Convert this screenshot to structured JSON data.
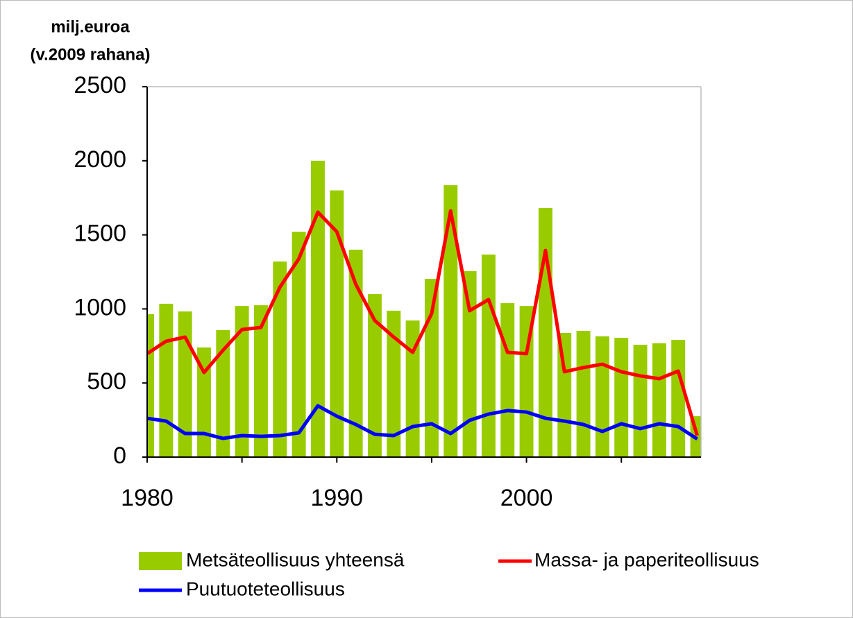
{
  "chart_data": {
    "type": "bar-line",
    "y_label": [
      "milj.euroa",
      "(v.2009 rahana)"
    ],
    "x": [
      1980,
      1981,
      1982,
      1983,
      1984,
      1985,
      1986,
      1987,
      1988,
      1989,
      1990,
      1991,
      1992,
      1993,
      1994,
      1995,
      1996,
      1997,
      1998,
      1999,
      2000,
      2001,
      2002,
      2003,
      2004,
      2005,
      2006,
      2007,
      2008,
      2009
    ],
    "series": [
      {
        "name": "Metsäteollisuus yhteensä",
        "type": "bar",
        "color": "#99cc00",
        "values": [
          965,
          1035,
          983,
          740,
          857,
          1020,
          1025,
          1320,
          1521,
          2000,
          1800,
          1400,
          1100,
          988,
          922,
          1203,
          1835,
          1255,
          1367,
          1039,
          1020,
          1681,
          838,
          852,
          815,
          805,
          758,
          768,
          791,
          276
        ]
      },
      {
        "name": "Massa- ja paperiteollisuus",
        "type": "line",
        "color": "#ff0000",
        "values": [
          698,
          782,
          810,
          571,
          721,
          861,
          875,
          1147,
          1339,
          1653,
          1521,
          1166,
          922,
          810,
          707,
          969,
          1662,
          988,
          1063,
          707,
          698,
          1395,
          576,
          604,
          627,
          576,
          548,
          529,
          581,
          145
        ]
      },
      {
        "name": "Puutuoteteollisuus",
        "type": "line",
        "color": "#0000ff",
        "values": [
          262,
          243,
          159,
          159,
          126,
          145,
          140,
          145,
          164,
          346,
          276,
          220,
          154,
          145,
          206,
          225,
          159,
          248,
          290,
          314,
          304,
          262,
          243,
          220,
          173,
          225,
          192,
          225,
          206,
          122
        ]
      }
    ],
    "xlim": [
      1980,
      2009.2
    ],
    "xticks": [
      1980,
      1990,
      2000
    ],
    "xminorticks": [
      1985,
      1995,
      2005
    ],
    "ylim": [
      0,
      2500
    ],
    "yticks": [
      0,
      500,
      1000,
      1500,
      2000,
      2500
    ],
    "grid": false,
    "legend": "bottom"
  }
}
